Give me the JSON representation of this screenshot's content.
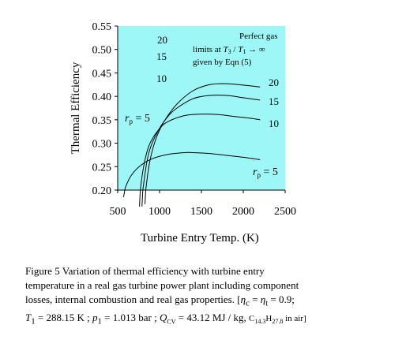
{
  "chart_data": {
    "type": "line",
    "xlabel": "Turbine Entry Temp. (K)",
    "ylabel": "Thermal Efficiency",
    "xlim": [
      500,
      2500
    ],
    "ylim": [
      0.2,
      0.55
    ],
    "xticks": [
      "500",
      "1000",
      "1500",
      "2000",
      "2500"
    ],
    "yticks": [
      "0.20",
      "0.25",
      "0.30",
      "0.35",
      "0.40",
      "0.45",
      "0.50",
      "0.55"
    ],
    "plot_background": "#9ef7f7",
    "curve_color": "#000000",
    "grid": false,
    "series": [
      {
        "name": "5",
        "x": [
          590,
          650,
          750,
          900,
          1100,
          1300,
          1400,
          1600,
          1800,
          2000,
          2200
        ],
        "y": [
          0.205,
          0.228,
          0.249,
          0.266,
          0.276,
          0.28,
          0.28,
          0.278,
          0.274,
          0.27,
          0.265
        ]
      },
      {
        "name": "10",
        "x": [
          770,
          800,
          850,
          900,
          1000,
          1100,
          1300,
          1500,
          1700,
          1900,
          2100,
          2200
        ],
        "y": [
          0.2,
          0.24,
          0.282,
          0.305,
          0.331,
          0.346,
          0.359,
          0.362,
          0.361,
          0.357,
          0.353,
          0.35
        ]
      },
      {
        "name": "15",
        "x": [
          800,
          850,
          900,
          1000,
          1100,
          1200,
          1400,
          1600,
          1800,
          2000,
          2200
        ],
        "y": [
          0.2,
          0.262,
          0.295,
          0.332,
          0.357,
          0.374,
          0.395,
          0.402,
          0.402,
          0.397,
          0.392
        ]
      },
      {
        "name": "20",
        "x": [
          835,
          880,
          950,
          1050,
          1200,
          1400,
          1600,
          1800,
          2000,
          2200
        ],
        "y": [
          0.2,
          0.258,
          0.306,
          0.345,
          0.382,
          0.412,
          0.425,
          0.427,
          0.424,
          0.42
        ]
      }
    ],
    "extensions_below_axis": [
      {
        "x": [
          590,
          570
        ],
        "y": [
          0.205,
          0.185
        ]
      },
      {
        "x": [
          770,
          760
        ],
        "y": [
          0.2,
          0.165
        ]
      },
      {
        "x": [
          800,
          790
        ],
        "y": [
          0.2,
          0.165
        ]
      },
      {
        "x": [
          835,
          826
        ],
        "y": [
          0.2,
          0.17
        ]
      }
    ],
    "curve_labels": [
      "20",
      "15",
      "10"
    ],
    "perfect_gas_labels": [
      "20",
      "15",
      "10"
    ],
    "annotation": {
      "line1": "Perfect gas",
      "line2_pre": "limits at ",
      "T": "T",
      "sub3": "3",
      "slash": " / ",
      "sub1": "1",
      "arrow": " → ∞",
      "line3": "given by Eqn (5)"
    },
    "rp_label": {
      "r": "r",
      "sub": "p",
      "value": " = 5"
    }
  },
  "caption": {
    "line1": "Figure 5  Variation of thermal efficiency with turbine entry",
    "line2": "temperature in a real gas turbine power plant including component",
    "line3_text": "losses, internal combustion and real gas properties.   [",
    "eta": "η",
    "c": "c",
    "t": "t",
    "eq": " = ",
    "eta_value": " = 0.9;",
    "T": "T",
    "one": "1",
    "T1_value": " = 288.15 K ;  ",
    "p": "p",
    "p1_value": " = 1.013 bar ;  ",
    "Q": "Q",
    "Q_sub": "CV",
    "Q_value": " = 43.12 MJ / kg, ",
    "fuel_C": "C",
    "fuel_C_sub": "14.3",
    "fuel_H": "H",
    "fuel_H_sub": "27.8",
    "fuel_tail": " in air]"
  }
}
